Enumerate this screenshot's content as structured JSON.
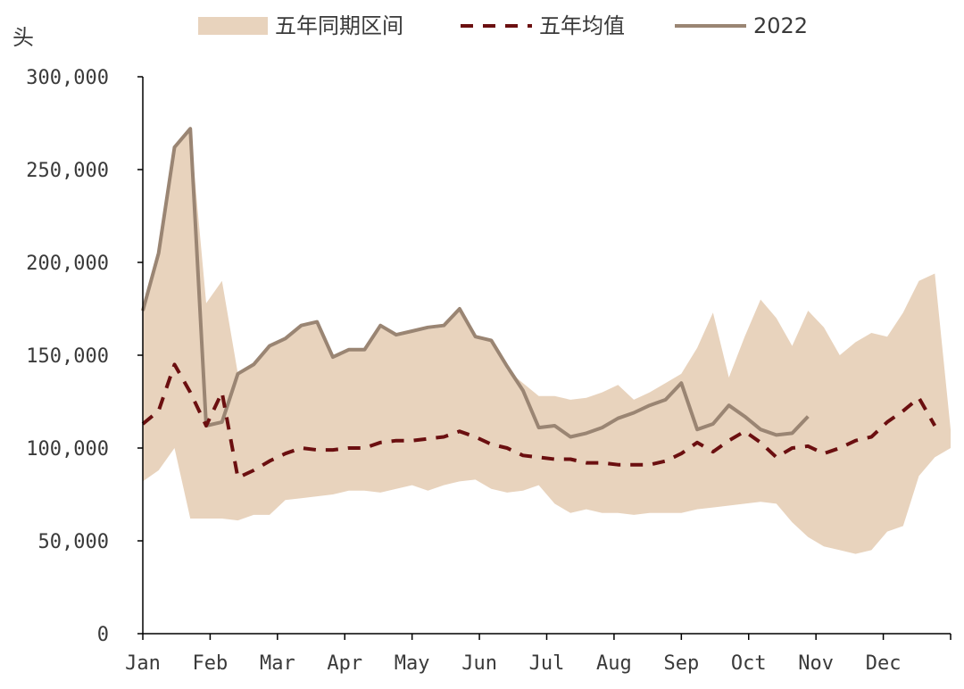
{
  "chart_data": {
    "type": "area",
    "unit_label": "头",
    "ylim": [
      0,
      300000
    ],
    "yticks": [
      0,
      50000,
      100000,
      150000,
      200000,
      250000,
      300000
    ],
    "ytick_labels": [
      "0",
      "50,000",
      "100,000",
      "150,000",
      "200,000",
      "250,000",
      "300,000"
    ],
    "months": [
      "Jan",
      "Feb",
      "Mar",
      "Apr",
      "May",
      "Jun",
      "Jul",
      "Aug",
      "Sep",
      "Oct",
      "Nov",
      "Dec"
    ],
    "weeks_total": 52,
    "grid": false,
    "legend_position": "top",
    "colors": {
      "band": "#e8d3bd",
      "avg": "#6b0f10",
      "line2022": "#9a8573",
      "axis": "#000000"
    },
    "series": [
      {
        "name": "五年同期区间",
        "kind": "band",
        "upper": [
          175000,
          205000,
          262000,
          272000,
          178000,
          190000,
          140000,
          145000,
          155000,
          158000,
          165000,
          167000,
          150000,
          153000,
          152000,
          165000,
          161000,
          162000,
          164000,
          165000,
          174000,
          160000,
          157000,
          142000,
          135000,
          128000,
          128000,
          126000,
          127000,
          130000,
          134000,
          126000,
          130000,
          135000,
          140000,
          154000,
          173000,
          138000,
          160000,
          180000,
          170000,
          155000,
          174000,
          165000,
          150000,
          157000,
          162000,
          160000,
          173000,
          190000,
          194000,
          110000
        ],
        "lower": [
          82000,
          88000,
          100000,
          62000,
          62000,
          62000,
          61000,
          64000,
          64000,
          72000,
          73000,
          74000,
          75000,
          77000,
          77000,
          76000,
          78000,
          80000,
          77000,
          80000,
          82000,
          83000,
          78000,
          76000,
          77000,
          80000,
          70000,
          65000,
          67000,
          65000,
          65000,
          64000,
          65000,
          65000,
          65000,
          67000,
          68000,
          69000,
          70000,
          71000,
          70000,
          60000,
          52000,
          47000,
          45000,
          43000,
          45000,
          55000,
          58000,
          85000,
          95000,
          100000
        ]
      },
      {
        "name": "五年均值",
        "kind": "dashed",
        "values": [
          113000,
          120000,
          145000,
          130000,
          112000,
          130000,
          84000,
          88000,
          93000,
          97000,
          100000,
          99000,
          99000,
          100000,
          100000,
          103000,
          104000,
          104000,
          105000,
          106000,
          109000,
          106000,
          102000,
          100000,
          96000,
          95000,
          94000,
          94000,
          92000,
          92000,
          91000,
          91000,
          91000,
          93000,
          97000,
          103000,
          98000,
          104000,
          109000,
          103000,
          95000,
          100000,
          101000,
          97000,
          100000,
          104000,
          106000,
          114000,
          120000,
          127000,
          112000,
          null
        ]
      },
      {
        "name": "2022",
        "kind": "line",
        "values": [
          174000,
          205000,
          262000,
          272000,
          112000,
          114000,
          140000,
          145000,
          155000,
          159000,
          166000,
          168000,
          149000,
          153000,
          153000,
          166000,
          161000,
          163000,
          165000,
          166000,
          175000,
          160000,
          158000,
          144000,
          131000,
          111000,
          112000,
          106000,
          108000,
          111000,
          116000,
          119000,
          123000,
          126000,
          135000,
          110000,
          113000,
          123000,
          117000,
          110000,
          107000,
          108000,
          117000,
          null,
          null,
          null,
          null,
          null,
          null,
          null,
          null,
          null
        ]
      }
    ]
  }
}
